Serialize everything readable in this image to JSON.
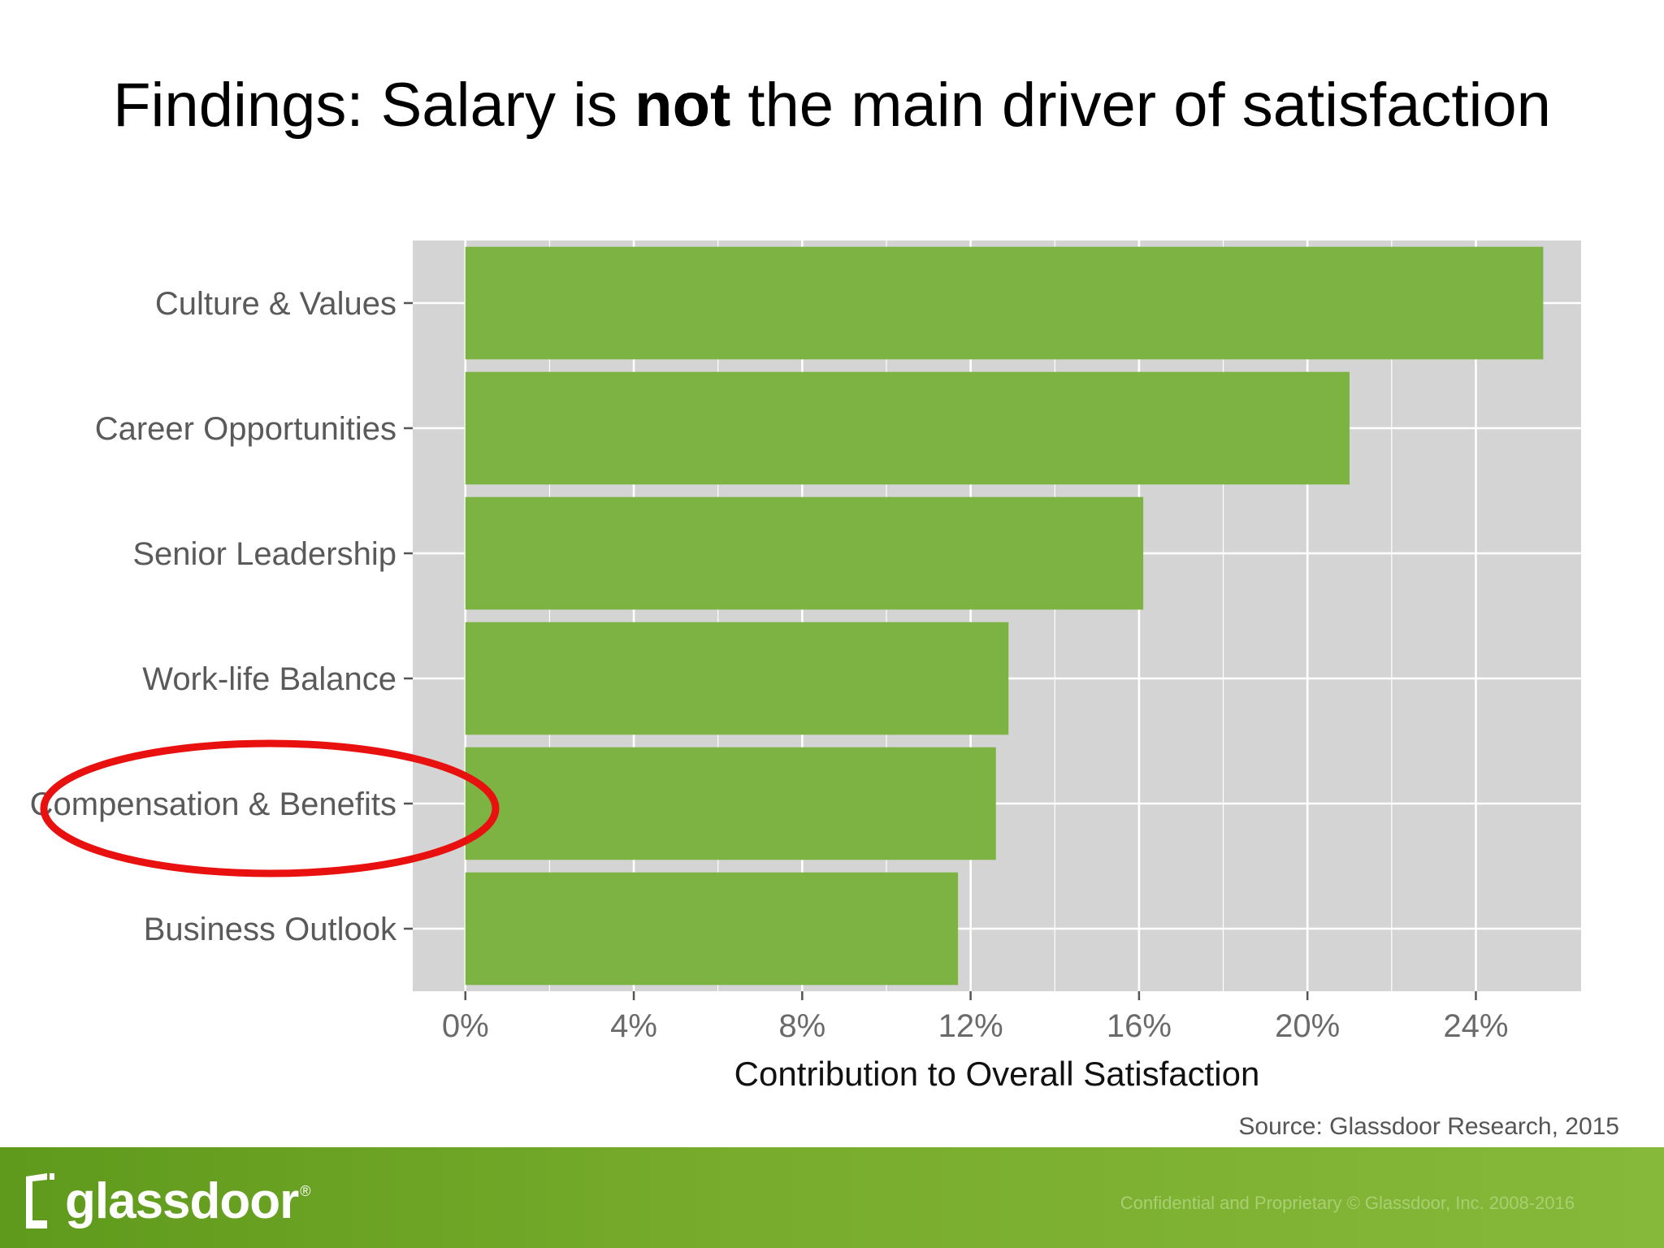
{
  "slide": {
    "title_prefix": "Findings: Salary is ",
    "title_bold": "not",
    "title_suffix": " the main driver of satisfaction",
    "source": "Source: Glassdoor Research, 2015"
  },
  "footer": {
    "logo_text": "glassdoor",
    "logo_reg": "®",
    "confidential": "Confidential and Proprietary © Glassdoor, Inc. 2008-2016"
  },
  "colors": {
    "bar": "#7cb342",
    "panel": "#d4d4d4",
    "grid": "#ffffff",
    "highlight": "#e8110f"
  },
  "chart_data": {
    "type": "bar",
    "orientation": "horizontal",
    "categories": [
      "Culture & Values",
      "Career Opportunities",
      "Senior Leadership",
      "Work-life Balance",
      "Compensation & Benefits",
      "Business Outlook"
    ],
    "values": [
      25.6,
      21.0,
      16.1,
      12.9,
      12.6,
      11.7
    ],
    "value_unit": "%",
    "xlabel": "Contribution to Overall Satisfaction",
    "ylabel": "",
    "xlim": [
      -1.25,
      26.5
    ],
    "xticks": [
      0,
      4,
      8,
      12,
      16,
      20,
      24
    ],
    "xtick_labels": [
      "0%",
      "4%",
      "8%",
      "12%",
      "16%",
      "20%",
      "24%"
    ],
    "grid": true,
    "highlighted_category": "Compensation & Benefits"
  }
}
